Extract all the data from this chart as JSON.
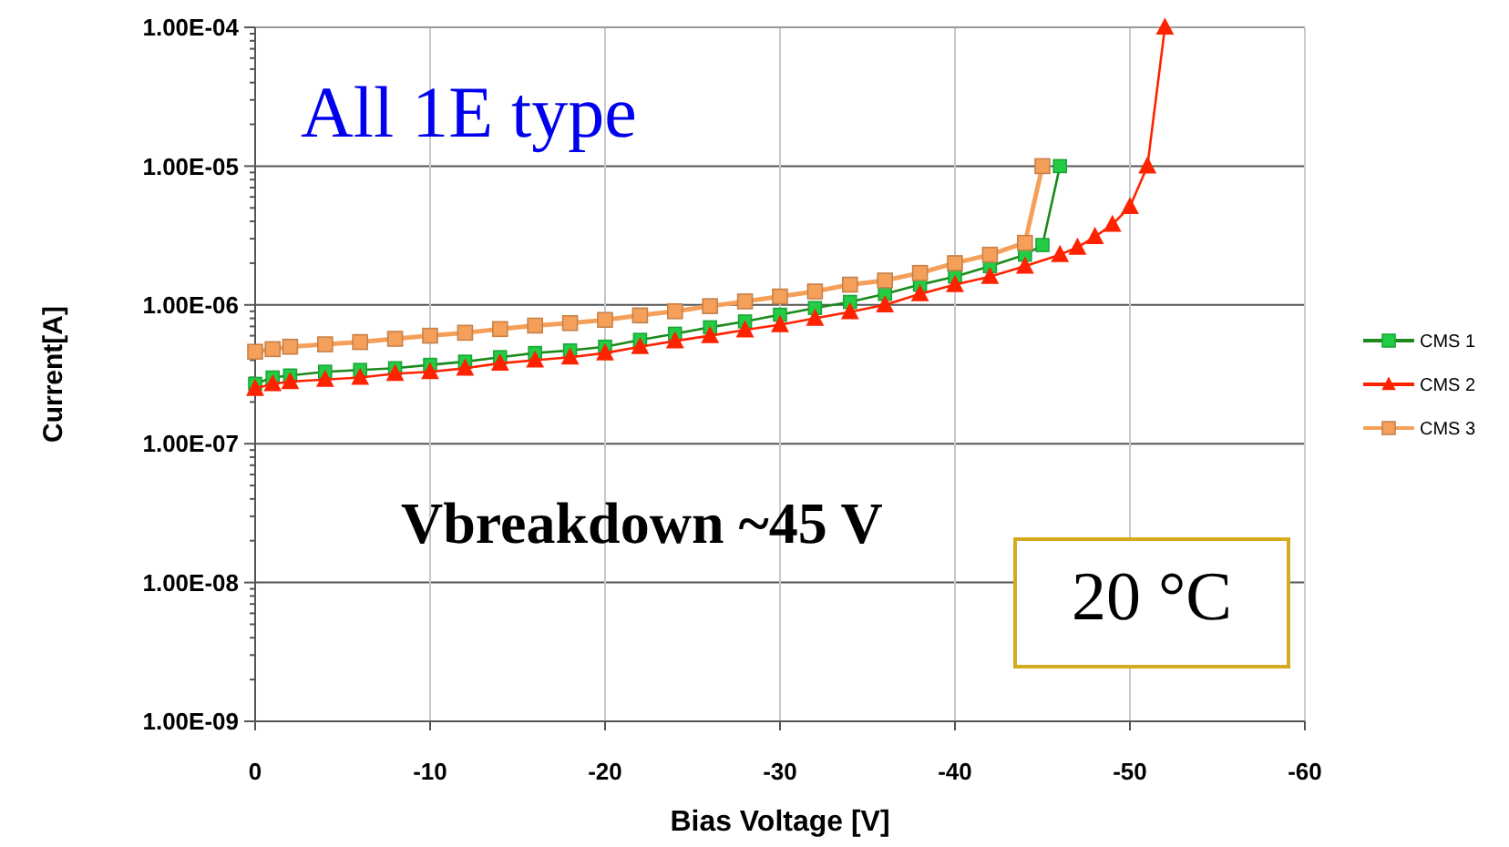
{
  "chart_data": {
    "type": "line",
    "xlabel": "Bias Voltage [V]",
    "ylabel": "Current[A]",
    "log": "y",
    "grid": true,
    "legend": "right",
    "xlim": [
      0,
      -60
    ],
    "xticks": [
      0,
      -10,
      -20,
      -30,
      -40,
      -50,
      -60
    ],
    "ylim": [
      1e-09,
      0.0001
    ],
    "yticks": [
      {
        "value": 1e-09,
        "label": "1.00E-09"
      },
      {
        "value": 1e-08,
        "label": "1.00E-08"
      },
      {
        "value": 1e-07,
        "label": "1.00E-07"
      },
      {
        "value": 1e-06,
        "label": "1.00E-06"
      },
      {
        "value": 1e-05,
        "label": "1.00E-05"
      },
      {
        "value": 0.0001,
        "label": "1.00E-04"
      }
    ],
    "annotations": [
      "All 1E type",
      "Vbreakdown ~45 V",
      "20 °C"
    ],
    "series": [
      {
        "name": "CMS 1",
        "color": "#22cc44",
        "marker": "square",
        "x": [
          0,
          -1,
          -2,
          -4,
          -6,
          -8,
          -10,
          -12,
          -14,
          -16,
          -18,
          -20,
          -22,
          -24,
          -26,
          -28,
          -30,
          -32,
          -34,
          -36,
          -38,
          -40,
          -42,
          -44,
          -45,
          -46
        ],
        "values": [
          2.7e-07,
          3e-07,
          3.1e-07,
          3.3e-07,
          3.4e-07,
          3.5e-07,
          3.7e-07,
          3.9e-07,
          4.2e-07,
          4.5e-07,
          4.7e-07,
          5e-07,
          5.6e-07,
          6.2e-07,
          6.9e-07,
          7.6e-07,
          8.5e-07,
          9.5e-07,
          1.05e-06,
          1.2e-06,
          1.4e-06,
          1.6e-06,
          1.9e-06,
          2.3e-06,
          2.7e-06,
          1e-05
        ]
      },
      {
        "name": "CMS 2",
        "color": "#ff2200",
        "marker": "triangle",
        "x": [
          0,
          -1,
          -2,
          -4,
          -6,
          -8,
          -10,
          -12,
          -14,
          -16,
          -18,
          -20,
          -22,
          -24,
          -26,
          -28,
          -30,
          -32,
          -34,
          -36,
          -38,
          -40,
          -42,
          -44,
          -46,
          -47,
          -48,
          -49,
          -50,
          -51,
          -52
        ],
        "values": [
          2.5e-07,
          2.7e-07,
          2.8e-07,
          2.9e-07,
          3e-07,
          3.2e-07,
          3.3e-07,
          3.5e-07,
          3.8e-07,
          4e-07,
          4.2e-07,
          4.5e-07,
          5e-07,
          5.5e-07,
          6e-07,
          6.6e-07,
          7.2e-07,
          8e-07,
          8.9e-07,
          1e-06,
          1.2e-06,
          1.4e-06,
          1.6e-06,
          1.9e-06,
          2.3e-06,
          2.6e-06,
          3.1e-06,
          3.8e-06,
          5.1e-06,
          1e-05,
          0.0001
        ]
      },
      {
        "name": "CMS 3",
        "color": "#f5a05a",
        "marker": "square",
        "x": [
          0,
          -1,
          -2,
          -4,
          -6,
          -8,
          -10,
          -12,
          -14,
          -16,
          -18,
          -20,
          -22,
          -24,
          -26,
          -28,
          -30,
          -32,
          -34,
          -36,
          -38,
          -40,
          -42,
          -44,
          -45
        ],
        "values": [
          4.6e-07,
          4.8e-07,
          5e-07,
          5.2e-07,
          5.4e-07,
          5.7e-07,
          6e-07,
          6.3e-07,
          6.7e-07,
          7.1e-07,
          7.4e-07,
          7.8e-07,
          8.4e-07,
          9e-07,
          9.8e-07,
          1.06e-06,
          1.15e-06,
          1.25e-06,
          1.4e-06,
          1.5e-06,
          1.7e-06,
          2e-06,
          2.3e-06,
          2.8e-06,
          1e-05
        ]
      }
    ]
  }
}
